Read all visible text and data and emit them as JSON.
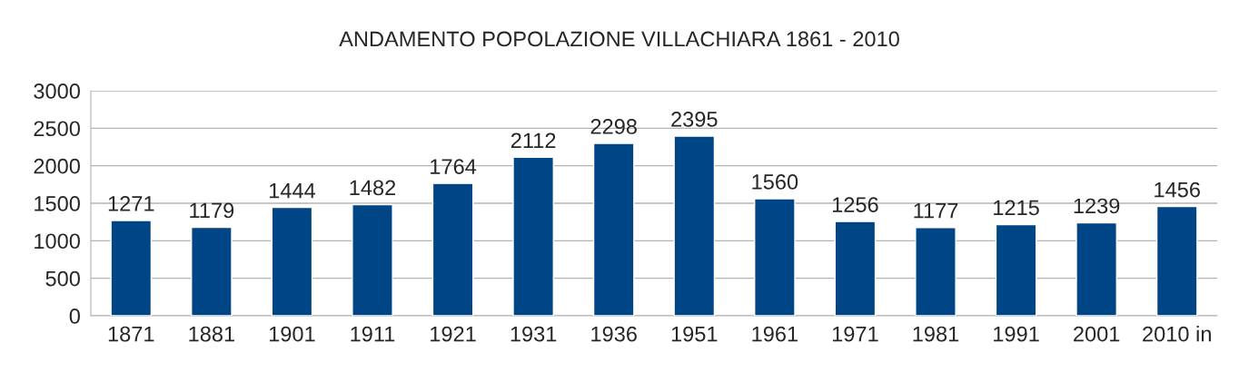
{
  "chart_data": {
    "type": "bar",
    "title": "ANDAMENTO POPOLAZIONE VILLACHIARA 1861 - 2010",
    "categories": [
      "1871",
      "1881",
      "1901",
      "1911",
      "1921",
      "1931",
      "1936",
      "1951",
      "1961",
      "1971",
      "1981",
      "1991",
      "2001",
      "2010 in"
    ],
    "series": [
      {
        "color": "#004586",
        "values": [
          1271,
          1179,
          1444,
          1482,
          1764,
          2112,
          2298,
          2395,
          1560,
          1256,
          1177,
          1215,
          1239,
          1456
        ]
      }
    ],
    "ylim": [
      0,
      3000
    ],
    "yticks": [
      0,
      500,
      1000,
      1500,
      2000,
      2500,
      3000
    ],
    "grid": "y",
    "data_labels": true
  }
}
